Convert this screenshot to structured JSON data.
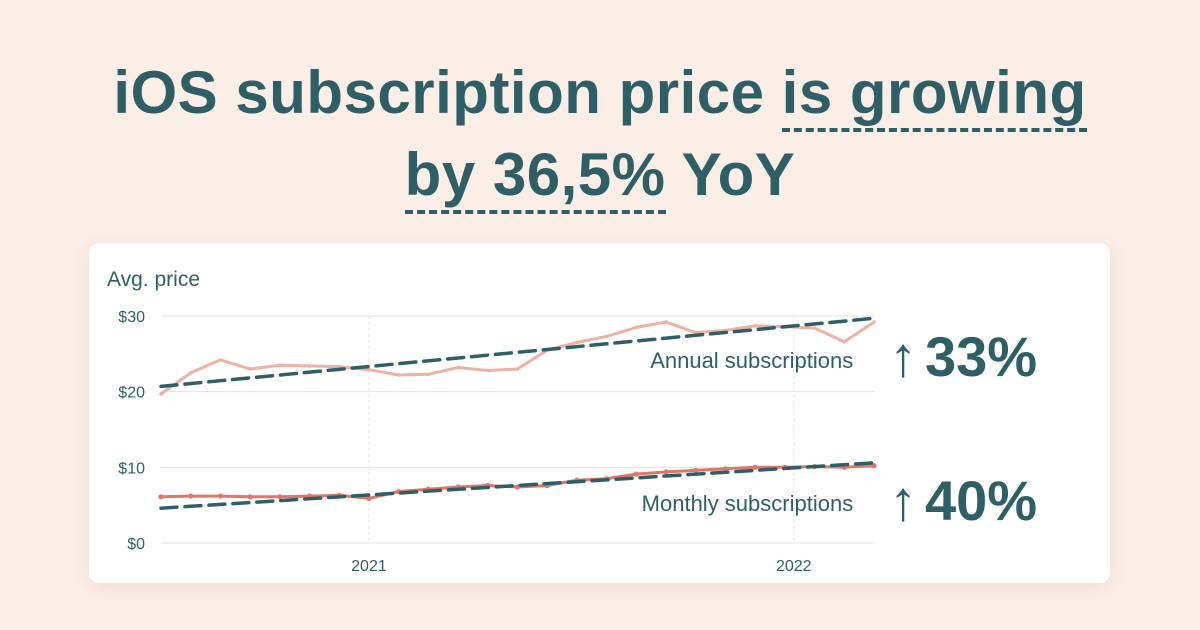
{
  "headline": {
    "line1_plain": "iOS subscription price ",
    "line1_underlined": "is growing",
    "line2_underlined": "by 36,5%",
    "line2_plain": " YoY"
  },
  "colors": {
    "background": "#fbeee6",
    "text": "#2e5f67",
    "annual_line": "#eeb2a5",
    "monthly_line": "#df7769",
    "trend": "#2e5f67",
    "grid": "#e2e2e2"
  },
  "badges": {
    "arrow_icon": "arrow-up-icon",
    "annual": {
      "arrow": "↑",
      "value": "33%"
    },
    "monthly": {
      "arrow": "↑",
      "value": "40%"
    }
  },
  "chart_data": {
    "type": "line",
    "title": "",
    "xlabel": "",
    "ylabel": "Avg. price",
    "ylim": [
      0,
      30
    ],
    "y_ticks": [
      {
        "value": 0,
        "label": "$0"
      },
      {
        "value": 10,
        "label": "$10"
      },
      {
        "value": 20,
        "label": "$20"
      },
      {
        "value": 30,
        "label": "$30"
      }
    ],
    "xlim": [
      0,
      24
    ],
    "x_ticks": [
      {
        "value": 7,
        "label": "2021"
      },
      {
        "value": 21.3,
        "label": "2022"
      }
    ],
    "grid": true,
    "series": [
      {
        "name": "Annual subscriptions",
        "color": "#eeb2a5",
        "label_anchor": [
          23.3,
          23.1
        ],
        "x": [
          0,
          1,
          2,
          3,
          4,
          5,
          6,
          7,
          8,
          9,
          10,
          11,
          12,
          13,
          14,
          15,
          16,
          17,
          18,
          19,
          20,
          21,
          22,
          23,
          24
        ],
        "values": [
          19.7,
          22.5,
          24.2,
          23.0,
          23.5,
          23.4,
          23.3,
          22.9,
          22.2,
          22.3,
          23.2,
          22.8,
          23.0,
          25.5,
          26.5,
          27.3,
          28.5,
          29.2,
          27.8,
          28.1,
          28.7,
          28.6,
          28.4,
          26.6,
          29.2
        ],
        "trend": {
          "x": [
            0,
            24
          ],
          "y": [
            20.7,
            29.7
          ]
        }
      },
      {
        "name": "Monthly subscriptions",
        "color": "#df7769",
        "label_anchor": [
          23.3,
          4.2
        ],
        "x": [
          0,
          1,
          2,
          3,
          4,
          5,
          6,
          7,
          8,
          9,
          10,
          11,
          12,
          13,
          14,
          15,
          16,
          17,
          18,
          19,
          20,
          21,
          22,
          23,
          24
        ],
        "values": [
          6.1,
          6.2,
          6.2,
          6.1,
          6.1,
          6.2,
          6.3,
          5.9,
          6.8,
          7.1,
          7.4,
          7.6,
          7.4,
          7.6,
          8.3,
          8.5,
          9.1,
          9.4,
          9.6,
          9.8,
          10.0,
          10.0,
          10.1,
          10.0,
          10.2
        ],
        "trend": {
          "x": [
            0,
            24
          ],
          "y": [
            4.6,
            10.6
          ]
        }
      }
    ]
  }
}
